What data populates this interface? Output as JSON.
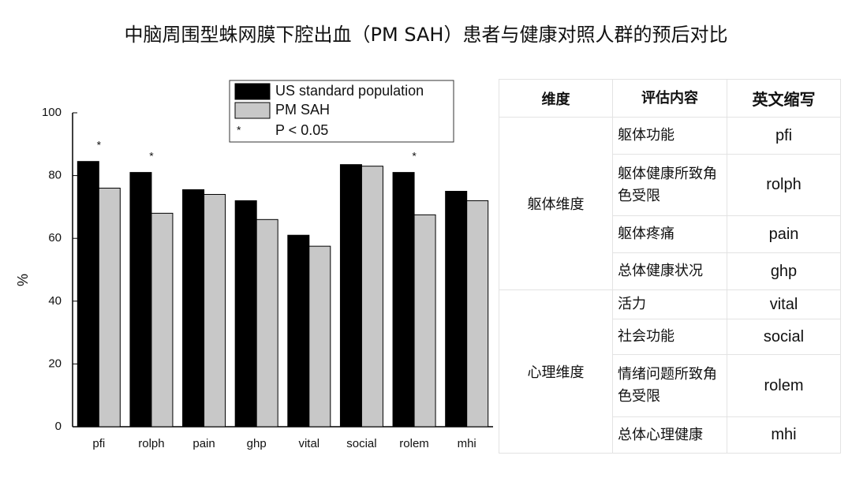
{
  "title": "中脑周围型蛛网膜下腔出血（PM SAH）患者与健康对照人群的预后对比",
  "chart_data": {
    "type": "bar",
    "y_label": "%",
    "categories": [
      "pfi",
      "rolph",
      "pain",
      "ghp",
      "vital",
      "social",
      "rolem",
      "mhi"
    ],
    "series": [
      {
        "name": "US standard population",
        "color": "#000000",
        "values": [
          84.5,
          81,
          75.5,
          72,
          61,
          83.5,
          81,
          75
        ]
      },
      {
        "name": "PM SAH",
        "color": "#c8c8c8",
        "values": [
          76,
          68,
          74,
          66,
          57.5,
          83,
          67.5,
          72
        ]
      }
    ],
    "significance_marker": "*",
    "significance_label": "P < 0.05",
    "significant": [
      true,
      true,
      false,
      false,
      false,
      false,
      true,
      false
    ],
    "ylim": [
      0,
      100
    ],
    "yticks": [
      0,
      20,
      40,
      60,
      80,
      100
    ],
    "grid": false
  },
  "table": {
    "header": [
      "维度",
      "评估内容",
      "英文缩写"
    ],
    "groups": [
      {
        "dimension": "躯体维度",
        "rows": [
          [
            "躯体功能",
            "pfi"
          ],
          [
            "躯体健康所致角色受限",
            "rolph"
          ],
          [
            "躯体疼痛",
            "pain"
          ],
          [
            "总体健康状况",
            "ghp"
          ]
        ]
      },
      {
        "dimension": "心理维度",
        "rows": [
          [
            "活力",
            "vital"
          ],
          [
            "社会功能",
            "social"
          ],
          [
            "情绪问题所致角色受限",
            "rolem"
          ],
          [
            "总体心理健康",
            "mhi"
          ]
        ]
      }
    ]
  }
}
